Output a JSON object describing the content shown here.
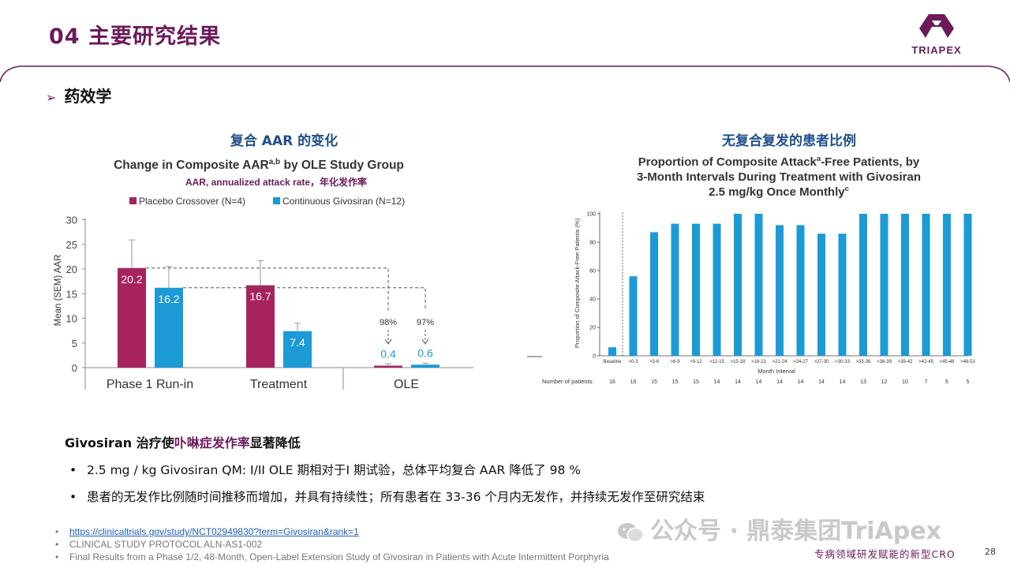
{
  "header": {
    "title": "04 主要研究结果",
    "logo_text": "TRIAPEX",
    "brand_color": "#6b1a5a"
  },
  "section": {
    "arrow": "➢",
    "heading": "药效学"
  },
  "left_panel": {
    "heading": "复合 AAR 的变化",
    "chart_title": "Change in Composite AAR",
    "chart_title_sup": "a,b",
    "chart_title_suffix": " by OLE Study Group",
    "note": "AAR, annualized attack rate，年化发作率"
  },
  "right_panel": {
    "heading": "无复合复发的患者比例",
    "title_line1_a": "Proportion of Composite Attack",
    "title_line1_sup": "a",
    "title_line1_b": "-Free Patients, by",
    "title_line2": "3-Month Intervals During Treatment with Givosiran",
    "title_line3": "2.5 mg/kg Once Monthly",
    "title_line3_sup": "c",
    "patients_label": "Number of patients:"
  },
  "chart_data": [
    {
      "type": "bar",
      "title": "Change in Composite AARa,b by OLE Study Group",
      "xlabel": "",
      "ylabel": "Mean (SEM) AAR",
      "ylim": [
        0,
        30
      ],
      "yticks": [
        0,
        5,
        10,
        15,
        20,
        25,
        30
      ],
      "categories": [
        "Phase 1 Run-in",
        "Treatment",
        "OLE"
      ],
      "series": [
        {
          "name": "Placebo Crossover (N=4)",
          "color": "#a6235d",
          "values": [
            20.2,
            16.7,
            0.4
          ],
          "sem_upper": [
            25.9,
            21.7,
            0.8
          ]
        },
        {
          "name": "Continuous Givosiran (N=12)",
          "color": "#1c9ad6",
          "values": [
            16.2,
            7.4,
            0.6
          ],
          "sem_upper": [
            20.5,
            9.0,
            0.9
          ]
        }
      ],
      "value_labels": [
        "20.2",
        "16.2",
        "16.7",
        "7.4",
        "0.4",
        "0.6"
      ],
      "annotations": [
        "98%",
        "97%"
      ],
      "legend": "top"
    },
    {
      "type": "bar",
      "title": "Proportion of Composite Attacka-Free Patients, by 3-Month Intervals During Treatment with Givosiran 2.5 mg/kg Once Monthlyc",
      "xlabel": "Month Interval",
      "ylabel": "Proportion of Composite Attack-Free Patients (%)",
      "ylim": [
        0,
        100
      ],
      "yticks": [
        0,
        20,
        40,
        60,
        80,
        100
      ],
      "categories": [
        "Baseline",
        ">0-3",
        ">3-6",
        ">6-9",
        ">9-12",
        ">12-15",
        ">15-18",
        ">18-21",
        ">21-24",
        ">24-27",
        ">27-30",
        ">30-33",
        ">33-36",
        ">36-39",
        ">39-42",
        ">42-45",
        ">45-48",
        ">48-51"
      ],
      "values": [
        6,
        56,
        87,
        93,
        93,
        93,
        100,
        100,
        92,
        92,
        86,
        86,
        100,
        100,
        100,
        100,
        100,
        100
      ],
      "number_of_patients": [
        "16",
        "16",
        "15",
        "15",
        "15",
        "14",
        "14",
        "14",
        "14",
        "14",
        "14",
        "14",
        "13",
        "12",
        "10",
        "7",
        "5",
        "5"
      ],
      "color": "#1c9ad6"
    }
  ],
  "conclusion": {
    "prefix": "Givosiran 治疗使",
    "highlight": "卟啉症发作率",
    "suffix": "显著降低",
    "bullet_dot": "•",
    "bullets": [
      "2.5 mg / kg Givosiran QM:   I/II OLE 期相对于I 期试验，总体平均复合 AAR 降低了 98 %",
      "患者的无发作比例随时间推移而增加，并具有持续性；所有患者在 33-36 个月内无发作，并持续无发作至研究结束"
    ]
  },
  "references": [
    "https://clinicaltrials.gov/study/NCT02949830?term=Givosiran&rank=1",
    "CLINICAL STUDY PROTOCOL  ALN-AS1-002",
    "Final Results from a Phase 1/2, 48-Month, Open-Label Extension Study of Givosiran in Patients with Acute Intermittent Porphyria"
  ],
  "footer": {
    "watermark": "公众号 · 鼎泰集团TriApex",
    "tagline": "专病领域研发赋能的新型CRO",
    "page_number": "28"
  }
}
